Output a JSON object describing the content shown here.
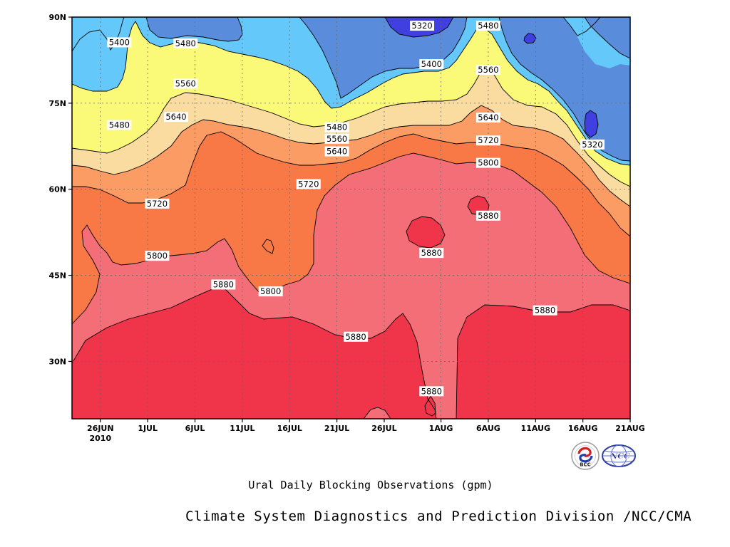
{
  "chart_data": {
    "type": "contour",
    "title": "",
    "subtitle": "Ural Daily Blocking Observations (gpm)",
    "credit": "Climate System Diagnostics and Prediction Division /NCC/CMA",
    "x_ticks": [
      "26JUN",
      "1JUL",
      "6JUL",
      "11JUL",
      "16JUL",
      "21JUL",
      "26JUL",
      "1AUG",
      "6AUG",
      "11AUG",
      "16AUG",
      "21AUG"
    ],
    "x_year_label": "2010",
    "y_ticks": [
      "30N",
      "45N",
      "60N",
      "75N",
      "90N"
    ],
    "x_range": [
      "2010-06-23",
      "2010-08-21"
    ],
    "y_range": [
      20,
      90
    ],
    "contour_levels": [
      5320,
      5400,
      5480,
      5560,
      5640,
      5720,
      5800,
      5880
    ],
    "fill_colors": [
      "#4040e0",
      "#5a8cdc",
      "#64c8fa",
      "#fafa78",
      "#fadca0",
      "#fa9c64",
      "#f87846",
      "#f46e78",
      "#f0344a"
    ],
    "line_color": "#000000",
    "contour_labels": [
      {
        "text": "5320",
        "date": "2010-07-30",
        "lat": 88.5
      },
      {
        "text": "5480",
        "date": "2010-08-06",
        "lat": 88.5
      },
      {
        "text": "5400",
        "date": "2010-06-28",
        "lat": 85.6
      },
      {
        "text": "5480",
        "date": "2010-07-05",
        "lat": 85.4
      },
      {
        "text": "5400",
        "date": "2010-07-31",
        "lat": 81.8
      },
      {
        "text": "5560",
        "date": "2010-08-06",
        "lat": 80.8
      },
      {
        "text": "5560",
        "date": "2010-07-05",
        "lat": 78.4
      },
      {
        "text": "5640",
        "date": "2010-07-04",
        "lat": 72.6
      },
      {
        "text": "5640",
        "date": "2010-08-06",
        "lat": 72.5
      },
      {
        "text": "5480",
        "date": "2010-06-28",
        "lat": 71.2
      },
      {
        "text": "5480",
        "date": "2010-07-21",
        "lat": 70.8
      },
      {
        "text": "5560",
        "date": "2010-07-21",
        "lat": 68.8
      },
      {
        "text": "5720",
        "date": "2010-08-06",
        "lat": 68.5
      },
      {
        "text": "5320",
        "date": "2010-08-17",
        "lat": 67.8
      },
      {
        "text": "5640",
        "date": "2010-07-21",
        "lat": 66.6
      },
      {
        "text": "5800",
        "date": "2010-08-06",
        "lat": 64.6
      },
      {
        "text": "5720",
        "date": "2010-07-18",
        "lat": 60.9
      },
      {
        "text": "5720",
        "date": "2010-07-02",
        "lat": 57.5
      },
      {
        "text": "5880",
        "date": "2010-08-06",
        "lat": 55.4
      },
      {
        "text": "5880",
        "date": "2010-07-31",
        "lat": 48.9
      },
      {
        "text": "5800",
        "date": "2010-07-02",
        "lat": 48.4
      },
      {
        "text": "5880",
        "date": "2010-07-09",
        "lat": 43.4
      },
      {
        "text": "5800",
        "date": "2010-07-14",
        "lat": 42.2
      },
      {
        "text": "5880",
        "date": "2010-08-12",
        "lat": 38.9
      },
      {
        "text": "5880",
        "date": "2010-07-23",
        "lat": 34.3
      },
      {
        "text": "5880",
        "date": "2010-07-31",
        "lat": 24.8
      }
    ]
  },
  "logos": {
    "bcc_text": "BCC",
    "ncc_text": "NCC"
  }
}
